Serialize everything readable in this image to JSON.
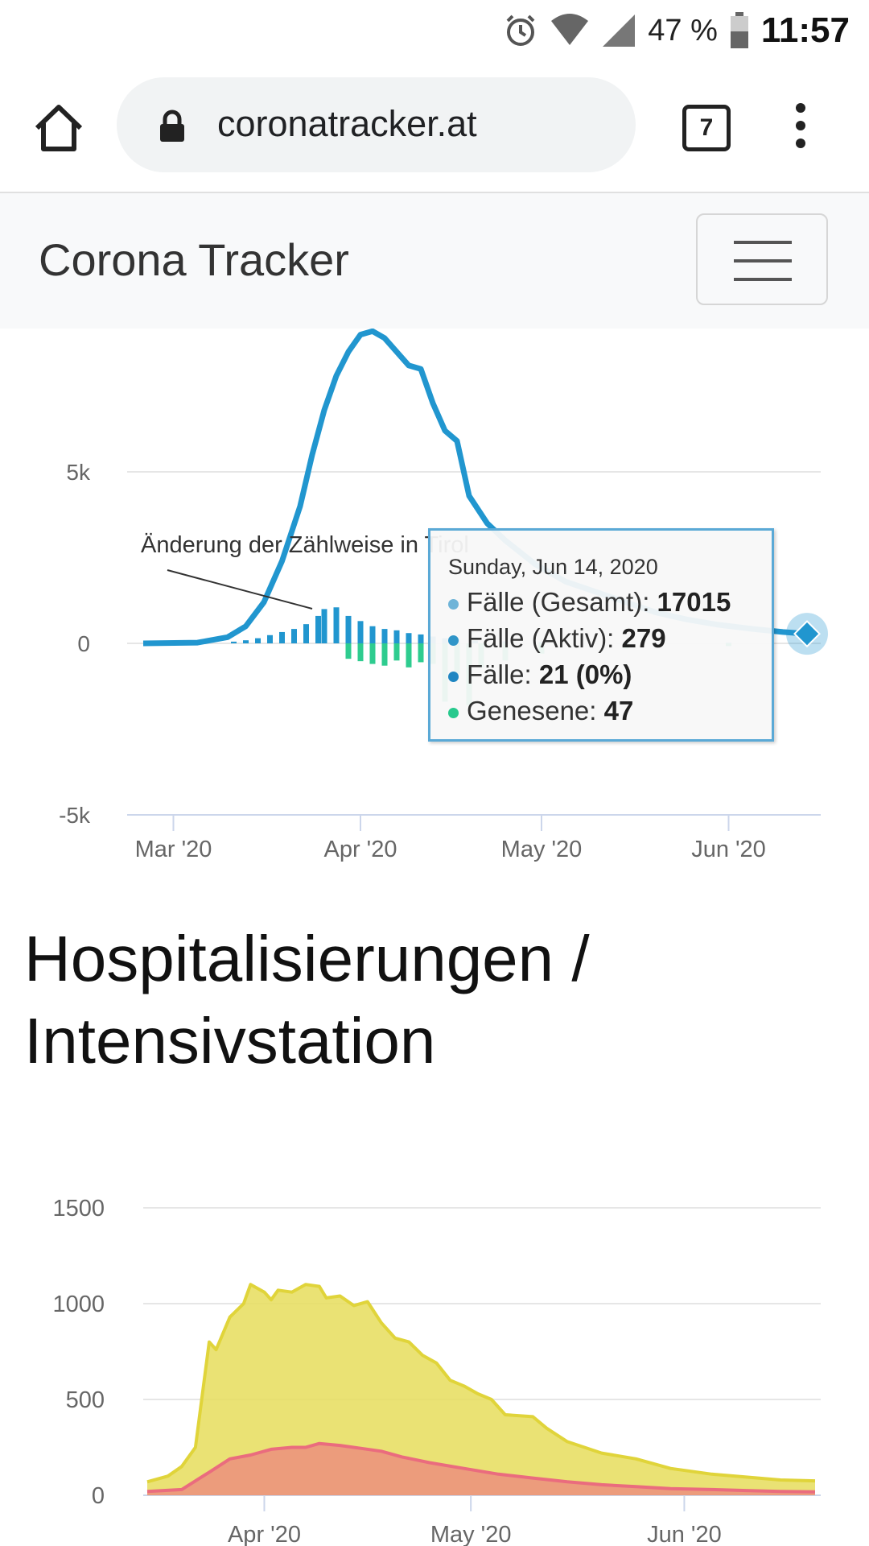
{
  "status_bar": {
    "battery": "47 %",
    "time": "11:57",
    "icons": [
      "alarm-icon",
      "wifi-icon",
      "signal-icon",
      "battery-icon"
    ]
  },
  "browser": {
    "url": "coronatracker.at",
    "tab_count": "7"
  },
  "navbar": {
    "brand": "Corona Tracker"
  },
  "chart1": {
    "annotation": "Änderung der Zählweise in Tirol",
    "tooltip": {
      "date": "Sunday, Jun 14, 2020",
      "rows": [
        {
          "label": "Fälle (Gesamt): ",
          "value": "17015",
          "color": "#6fb4d8"
        },
        {
          "label": "Fälle (Aktiv): ",
          "value": "279",
          "color": "#2f95c8"
        },
        {
          "label": "Fälle: ",
          "value": "21 (0%)",
          "color": "#1f86c2"
        },
        {
          "label": "Genesene: ",
          "value": "47",
          "color": "#27c98d"
        }
      ]
    }
  },
  "section_title": "Hospitalisierungen / Intensivstation",
  "colors": {
    "active": "#2196cf",
    "recovered": "#2ecc8f",
    "hospital": "#e6dd5c",
    "icu": "#ec8f7e"
  },
  "chart_data": [
    {
      "type": "line",
      "y_ticks": [
        "5k",
        "0",
        "-5k"
      ],
      "x_ticks": [
        "Mar '20",
        "Apr '20",
        "May '20",
        "Jun '20"
      ],
      "ylim": [
        -5000,
        9500
      ],
      "series": [
        {
          "name": "Fälle (Aktiv)",
          "type": "line",
          "points": [
            [
              "2020-02-25",
              0
            ],
            [
              "2020-03-05",
              20
            ],
            [
              "2020-03-10",
              180
            ],
            [
              "2020-03-13",
              500
            ],
            [
              "2020-03-16",
              1200
            ],
            [
              "2020-03-19",
              2400
            ],
            [
              "2020-03-22",
              4000
            ],
            [
              "2020-03-24",
              5500
            ],
            [
              "2020-03-26",
              6800
            ],
            [
              "2020-03-28",
              7800
            ],
            [
              "2020-03-30",
              8500
            ],
            [
              "2020-04-01",
              9000
            ],
            [
              "2020-04-03",
              9100
            ],
            [
              "2020-04-05",
              8900
            ],
            [
              "2020-04-07",
              8500
            ],
            [
              "2020-04-09",
              8100
            ],
            [
              "2020-04-11",
              8000
            ],
            [
              "2020-04-13",
              7000
            ],
            [
              "2020-04-15",
              6200
            ],
            [
              "2020-04-17",
              5900
            ],
            [
              "2020-04-19",
              4300
            ],
            [
              "2020-04-22",
              3500
            ],
            [
              "2020-04-25",
              3000
            ],
            [
              "2020-04-30",
              2300
            ],
            [
              "2020-05-05",
              1800
            ],
            [
              "2020-05-10",
              1500
            ],
            [
              "2020-05-15",
              1200
            ],
            [
              "2020-05-20",
              900
            ],
            [
              "2020-05-25",
              700
            ],
            [
              "2020-05-30",
              550
            ],
            [
              "2020-06-05",
              420
            ],
            [
              "2020-06-10",
              330
            ],
            [
              "2020-06-14",
              279
            ]
          ]
        },
        {
          "name": "Fälle",
          "type": "bar",
          "points": [
            [
              "2020-03-11",
              50
            ],
            [
              "2020-03-13",
              90
            ],
            [
              "2020-03-15",
              150
            ],
            [
              "2020-03-17",
              240
            ],
            [
              "2020-03-19",
              330
            ],
            [
              "2020-03-21",
              420
            ],
            [
              "2020-03-23",
              560
            ],
            [
              "2020-03-25",
              800
            ],
            [
              "2020-03-26",
              1000
            ],
            [
              "2020-03-28",
              1050
            ],
            [
              "2020-03-30",
              800
            ],
            [
              "2020-04-01",
              650
            ],
            [
              "2020-04-03",
              500
            ],
            [
              "2020-04-05",
              420
            ],
            [
              "2020-04-07",
              380
            ],
            [
              "2020-04-09",
              300
            ],
            [
              "2020-04-11",
              260
            ],
            [
              "2020-04-13",
              200
            ],
            [
              "2020-04-15",
              150
            ],
            [
              "2020-04-17",
              120
            ],
            [
              "2020-04-20",
              80
            ],
            [
              "2020-04-25",
              60
            ],
            [
              "2020-05-01",
              40
            ],
            [
              "2020-05-15",
              25
            ],
            [
              "2020-06-01",
              15
            ],
            [
              "2020-06-14",
              21
            ]
          ]
        },
        {
          "name": "Genesene",
          "type": "bar",
          "points": [
            [
              "2020-03-30",
              -450
            ],
            [
              "2020-04-01",
              -520
            ],
            [
              "2020-04-03",
              -600
            ],
            [
              "2020-04-05",
              -650
            ],
            [
              "2020-04-07",
              -500
            ],
            [
              "2020-04-09",
              -700
            ],
            [
              "2020-04-11",
              -550
            ],
            [
              "2020-04-13",
              -600
            ],
            [
              "2020-04-15",
              -1700
            ],
            [
              "2020-04-17",
              -900
            ],
            [
              "2020-04-19",
              -1800
            ],
            [
              "2020-04-21",
              -700
            ],
            [
              "2020-04-25",
              -500
            ],
            [
              "2020-05-01",
              -300
            ],
            [
              "2020-05-15",
              -150
            ],
            [
              "2020-06-01",
              -80
            ],
            [
              "2020-06-14",
              -47
            ]
          ]
        }
      ]
    },
    {
      "type": "area",
      "y_ticks": [
        "1500",
        "1000",
        "500",
        "0"
      ],
      "x_ticks": [
        "Apr '20",
        "May '20",
        "Jun '20"
      ],
      "ylim": [
        0,
        1500
      ],
      "series": [
        {
          "name": "Hospitalisierungen",
          "points": [
            [
              "2020-03-15",
              70
            ],
            [
              "2020-03-18",
              100
            ],
            [
              "2020-03-20",
              150
            ],
            [
              "2020-03-22",
              250
            ],
            [
              "2020-03-24",
              800
            ],
            [
              "2020-03-25",
              760
            ],
            [
              "2020-03-27",
              930
            ],
            [
              "2020-03-29",
              1000
            ],
            [
              "2020-03-30",
              1100
            ],
            [
              "2020-04-01",
              1060
            ],
            [
              "2020-04-02",
              1020
            ],
            [
              "2020-04-03",
              1070
            ],
            [
              "2020-04-05",
              1060
            ],
            [
              "2020-04-07",
              1100
            ],
            [
              "2020-04-09",
              1090
            ],
            [
              "2020-04-10",
              1030
            ],
            [
              "2020-04-12",
              1040
            ],
            [
              "2020-04-14",
              990
            ],
            [
              "2020-04-16",
              1010
            ],
            [
              "2020-04-18",
              900
            ],
            [
              "2020-04-20",
              820
            ],
            [
              "2020-04-22",
              800
            ],
            [
              "2020-04-24",
              730
            ],
            [
              "2020-04-26",
              690
            ],
            [
              "2020-04-28",
              600
            ],
            [
              "2020-04-30",
              570
            ],
            [
              "2020-05-02",
              530
            ],
            [
              "2020-05-04",
              500
            ],
            [
              "2020-05-06",
              420
            ],
            [
              "2020-05-10",
              410
            ],
            [
              "2020-05-12",
              350
            ],
            [
              "2020-05-15",
              280
            ],
            [
              "2020-05-20",
              220
            ],
            [
              "2020-05-25",
              190
            ],
            [
              "2020-05-30",
              140
            ],
            [
              "2020-06-05",
              110
            ],
            [
              "2020-06-10",
              95
            ],
            [
              "2020-06-15",
              80
            ],
            [
              "2020-06-20",
              75
            ]
          ]
        },
        {
          "name": "Intensivstation",
          "points": [
            [
              "2020-03-15",
              20
            ],
            [
              "2020-03-20",
              30
            ],
            [
              "2020-03-24",
              120
            ],
            [
              "2020-03-27",
              190
            ],
            [
              "2020-03-30",
              210
            ],
            [
              "2020-04-02",
              240
            ],
            [
              "2020-04-05",
              250
            ],
            [
              "2020-04-07",
              250
            ],
            [
              "2020-04-09",
              270
            ],
            [
              "2020-04-12",
              260
            ],
            [
              "2020-04-15",
              245
            ],
            [
              "2020-04-18",
              230
            ],
            [
              "2020-04-21",
              200
            ],
            [
              "2020-04-25",
              170
            ],
            [
              "2020-04-30",
              140
            ],
            [
              "2020-05-05",
              110
            ],
            [
              "2020-05-10",
              90
            ],
            [
              "2020-05-15",
              70
            ],
            [
              "2020-05-20",
              55
            ],
            [
              "2020-05-25",
              45
            ],
            [
              "2020-05-30",
              35
            ],
            [
              "2020-06-05",
              30
            ],
            [
              "2020-06-10",
              25
            ],
            [
              "2020-06-15",
              20
            ],
            [
              "2020-06-20",
              18
            ]
          ]
        }
      ]
    }
  ]
}
